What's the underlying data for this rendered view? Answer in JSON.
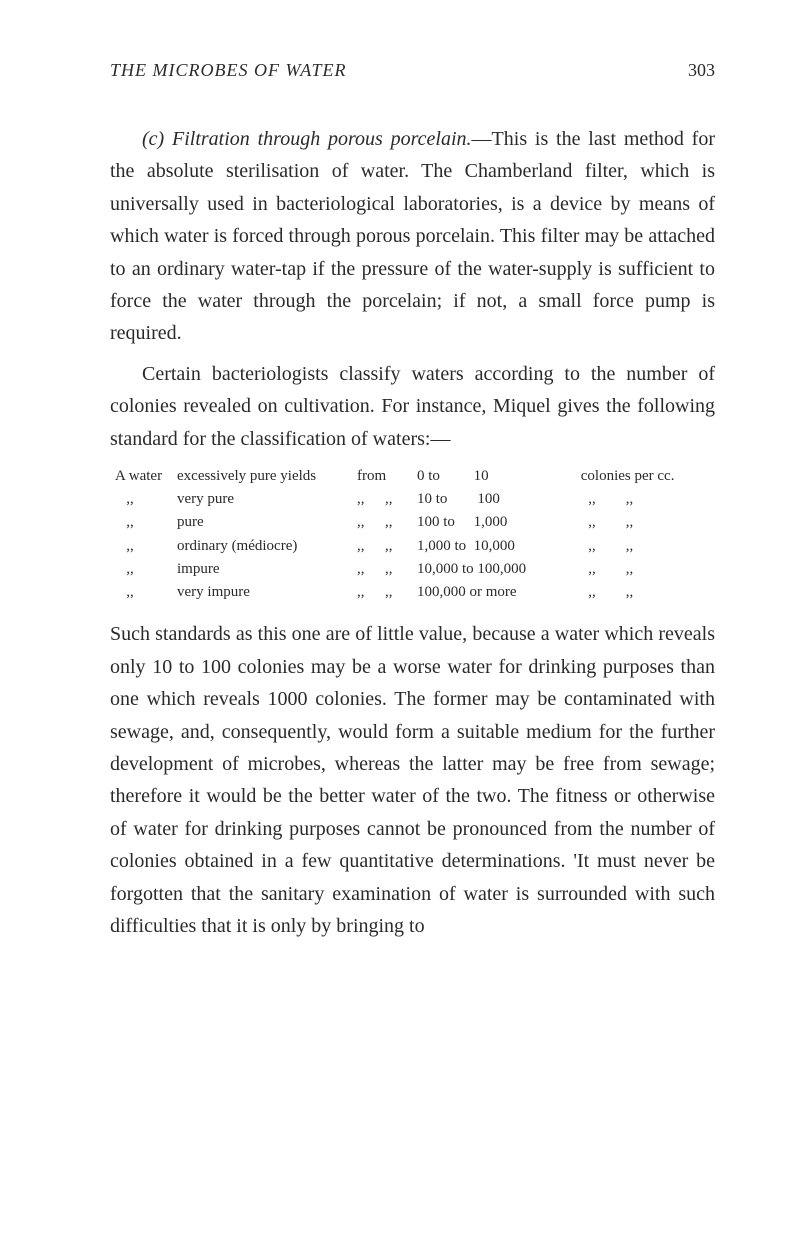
{
  "header": {
    "title": "THE MICROBES OF WATER",
    "pageNumber": "303"
  },
  "para1": {
    "lead": "(c) Filtration through porous porcelain.",
    "text": "—This is the last method for the absolute sterilisation of water. The Chamberland filter, which is universally used in bacteriological laboratories, is a device by means of which water is forced through porous porcelain. This filter may be attached to an ordinary water-tap if the pressure of the water-supply is sufficient to force the water through the porcelain; if not, a small force pump is required."
  },
  "para2": {
    "text": "Certain bacteriologists classify waters according to the number of colonies revealed on cultivation. For instance, Miquel gives the following standard for the classification of waters:—"
  },
  "table": {
    "rows": [
      {
        "c1": "A water",
        "c2": "excessively pure yields",
        "c3": "from",
        "c4": "",
        "c5": "0 to         10",
        "c6": " colonies per cc."
      },
      {
        "c1": "   ,,",
        "c2": "very pure",
        "c3": ",,",
        "c4": ",,",
        "c5": "10 to        100",
        "c6": "   ,,        ,,"
      },
      {
        "c1": "   ,,",
        "c2": "pure",
        "c3": ",,",
        "c4": ",,",
        "c5": "100 to     1,000",
        "c6": "   ,,        ,,"
      },
      {
        "c1": "   ,,",
        "c2": "ordinary (médiocre)",
        "c3": ",,",
        "c4": ",,",
        "c5": "1,000 to  10,000",
        "c6": "   ,,        ,,"
      },
      {
        "c1": "   ,,",
        "c2": "impure",
        "c3": ",,",
        "c4": ",,",
        "c5": "10,000 to 100,000",
        "c6": "   ,,        ,,"
      },
      {
        "c1": "   ,,",
        "c2": "very impure",
        "c3": ",,",
        "c4": ",,",
        "c5": "100,000 or more",
        "c6": "   ,,        ,,"
      }
    ]
  },
  "para3": {
    "text": "Such standards as this one are of little value, because a water which reveals only 10 to 100 colonies may be a worse water for drinking purposes than one which reveals 1000 colonies. The former may be contaminated with sewage, and, consequently, would form a suitable medium for the further development of microbes, whereas the latter may be free from sewage; therefore it would be the better water of the two. The fitness or otherwise of water for drinking purposes cannot be pronounced from the number of colonies obtained in a few quantitative determinations. 'It must never be forgotten that the sanitary examination of water is surrounded with such difficulties that it is only by bringing to"
  }
}
